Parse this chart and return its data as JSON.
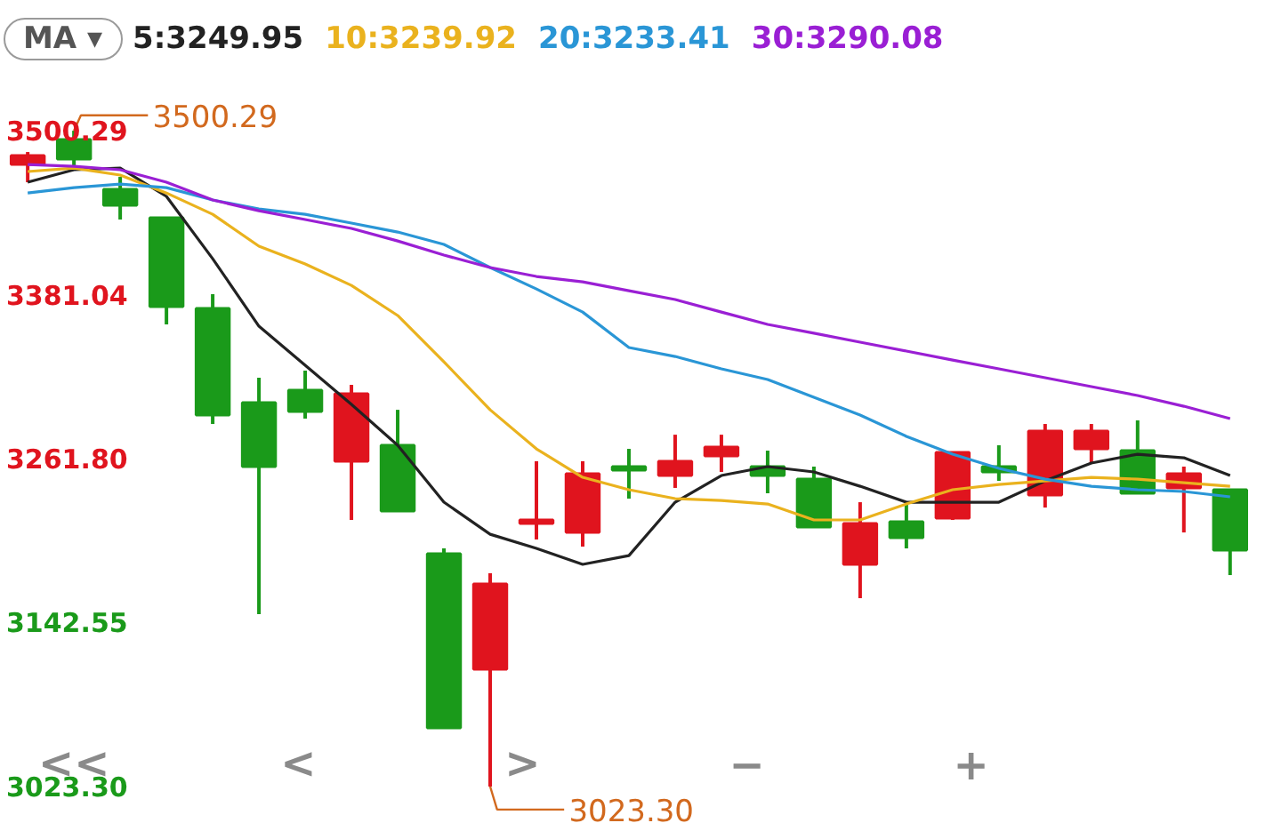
{
  "chart_data": {
    "type": "candlestick",
    "legend_title": "MA ▾",
    "categories": [
      null,
      null,
      null,
      null,
      null,
      null,
      null,
      null,
      null,
      null,
      null,
      null,
      null,
      null,
      null,
      null,
      null,
      null,
      null,
      null,
      null,
      null,
      null,
      null,
      null,
      null,
      null
    ],
    "ohlc": [
      [
        3475.7,
        3484.8,
        3462.8,
        3482.2
      ],
      [
        3493.8,
        3500.29,
        3474.4,
        3479.6
      ],
      [
        3457.6,
        3466.7,
        3435.7,
        3446.0
      ],
      [
        3437.0,
        3437.0,
        3359.4,
        3372.3
      ],
      [
        3371.0,
        3381.4,
        3287.0,
        3293.5
      ],
      [
        3302.5,
        3320.6,
        3148.7,
        3256.0
      ],
      [
        3311.6,
        3325.8,
        3290.9,
        3296.1
      ],
      [
        3259.9,
        3315.4,
        3217.2,
        3309.0
      ],
      [
        3271.5,
        3297.3,
        3223.7,
        3223.7
      ],
      [
        3192.6,
        3196.5,
        3066.0,
        3066.0
      ],
      [
        3108.6,
        3178.4,
        3023.3,
        3170.7
      ],
      [
        3214.6,
        3259.9,
        3203.0,
        3217.2
      ],
      [
        3208.1,
        3259.9,
        3197.8,
        3250.8
      ],
      [
        3256.0,
        3268.9,
        3232.7,
        3253.4
      ],
      [
        3249.5,
        3279.2,
        3240.5,
        3259.9
      ],
      [
        3263.7,
        3279.2,
        3252.1,
        3270.2
      ],
      [
        3256.0,
        3267.6,
        3236.6,
        3249.5
      ],
      [
        3246.9,
        3256.0,
        3212.0,
        3212.0
      ],
      [
        3184.9,
        3230.1,
        3160.3,
        3214.6
      ],
      [
        3215.9,
        3228.8,
        3196.5,
        3204.3
      ],
      [
        3218.5,
        3266.3,
        3217.2,
        3266.3
      ],
      [
        3256.0,
        3271.5,
        3245.6,
        3252.1
      ],
      [
        3235.3,
        3287.0,
        3226.2,
        3281.8
      ],
      [
        3268.9,
        3287.0,
        3258.6,
        3281.8
      ],
      [
        3267.6,
        3289.6,
        3236.6,
        3236.6
      ],
      [
        3240.5,
        3256.0,
        3208.1,
        3250.8
      ],
      [
        3239.2,
        3239.2,
        3177.1,
        3195.2
      ]
    ],
    "colors": [
      "#e0141e",
      "#1a9a1a",
      "#1a9a1a",
      "#1a9a1a",
      "#1a9a1a",
      "#1a9a1a",
      "#1a9a1a",
      "#e0141e",
      "#1a9a1a",
      "#1a9a1a",
      "#e0141e",
      "#e0141e",
      "#e0141e",
      "#1a9a1a",
      "#e0141e",
      "#e0141e",
      "#1a9a1a",
      "#1a9a1a",
      "#e0141e",
      "#1a9a1a",
      "#e0141e",
      "#1a9a1a",
      "#e0141e",
      "#e0141e",
      "#1a9a1a",
      "#e0141e",
      "#1a9a1a"
    ],
    "series": [
      {
        "type": "line",
        "name": "5:3249.95",
        "color": "#222222",
        "values": [
          3462.8,
          3471.9,
          3473.1,
          3452.5,
          3407.2,
          3358.1,
          3329.7,
          3301.2,
          3271.5,
          3230.1,
          3206.8,
          3196.5,
          3184.9,
          3191.3,
          3230.1,
          3249.5,
          3256.0,
          3252.1,
          3241.7,
          3230.1,
          3230.1,
          3230.1,
          3245.6,
          3258.6,
          3265.0,
          3262.4,
          3249.5
        ]
      },
      {
        "type": "line",
        "name": "10:3239.92",
        "color": "#eab21e",
        "values": [
          3470.6,
          3473.1,
          3468.0,
          3455.0,
          3439.5,
          3416.3,
          3403.4,
          3387.8,
          3365.9,
          3332.2,
          3297.3,
          3268.9,
          3248.2,
          3239.2,
          3232.7,
          3231.4,
          3228.8,
          3217.2,
          3217.2,
          3228.8,
          3239.2,
          3243.0,
          3245.6,
          3248.2,
          3246.9,
          3244.3,
          3241.7
        ]
      },
      {
        "type": "line",
        "name": "20:3233.41",
        "color": "#2a96d6",
        "values": [
          3455.0,
          3458.9,
          3461.5,
          3458.9,
          3449.9,
          3443.4,
          3439.5,
          3433.1,
          3426.6,
          3417.6,
          3400.8,
          3385.2,
          3368.4,
          3342.6,
          3336.1,
          3327.1,
          3319.3,
          3306.4,
          3293.5,
          3278.0,
          3265.0,
          3254.7,
          3246.9,
          3241.7,
          3239.2,
          3237.9,
          3234.0
        ]
      },
      {
        "type": "line",
        "name": "30:3290.08",
        "color": "#9a1fd4",
        "values": [
          3475.7,
          3474.4,
          3471.9,
          3462.8,
          3449.9,
          3442.1,
          3435.7,
          3429.2,
          3420.1,
          3409.8,
          3400.8,
          3394.3,
          3390.4,
          3383.9,
          3377.5,
          3368.4,
          3359.4,
          3353.0,
          3346.5,
          3340.0,
          3333.5,
          3327.1,
          3320.6,
          3314.2,
          3307.7,
          3299.9,
          3290.9
        ]
      }
    ],
    "ylim": [
      2984.5,
      3543.0
    ],
    "yticks": [
      {
        "value": 3023.3,
        "label": "3023.30"
      },
      {
        "value": 3142.55,
        "label": "3142.55"
      },
      {
        "value": 3261.8,
        "label": "3261.80"
      },
      {
        "value": 3381.04,
        "label": "3381.04"
      },
      {
        "value": 3500.29,
        "label": "3500.29"
      }
    ],
    "annotations": [
      "3500.29",
      "3023.30",
      "<<",
      "<",
      ">",
      "−",
      "+"
    ],
    "legend": "top left"
  }
}
